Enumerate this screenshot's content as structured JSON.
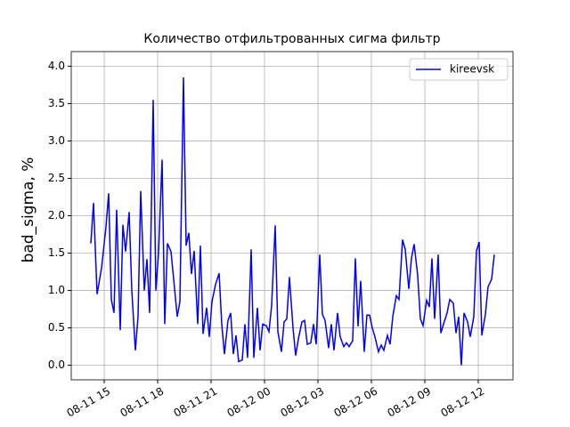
{
  "chart_data": {
    "type": "line",
    "title": "Количество отфильтрованных сигма фильтр",
    "y_label": "bad_sigma, %",
    "x": [
      "08-11 14:15",
      "08-11 14:24",
      "08-11 14:36",
      "08-11 14:51",
      "08-11 15:06",
      "08-11 15:15",
      "08-11 15:24",
      "08-11 15:33",
      "08-11 15:42",
      "08-11 15:54",
      "08-11 16:03",
      "08-11 16:12",
      "08-11 16:24",
      "08-11 16:33",
      "08-11 16:45",
      "08-11 16:54",
      "08-11 17:03",
      "08-11 17:15",
      "08-11 17:24",
      "08-11 17:33",
      "08-11 17:45",
      "08-11 17:54",
      "08-11 18:03",
      "08-11 18:15",
      "08-11 18:24",
      "08-11 18:33",
      "08-11 18:45",
      "08-11 18:54",
      "08-11 19:06",
      "08-11 19:15",
      "08-11 19:27",
      "08-11 19:36",
      "08-11 19:45",
      "08-11 19:54",
      "08-11 20:03",
      "08-11 20:15",
      "08-11 20:24",
      "08-11 20:33",
      "08-11 20:45",
      "08-11 20:54",
      "08-11 21:03",
      "08-11 21:15",
      "08-11 21:27",
      "08-11 21:36",
      "08-11 21:45",
      "08-11 21:57",
      "08-11 22:06",
      "08-11 22:15",
      "08-11 22:24",
      "08-11 22:33",
      "08-11 22:45",
      "08-11 22:54",
      "08-11 23:03",
      "08-11 23:15",
      "08-11 23:24",
      "08-11 23:36",
      "08-11 23:45",
      "08-11 23:54",
      "08-12 00:06",
      "08-12 00:15",
      "08-12 00:24",
      "08-12 00:36",
      "08-12 00:45",
      "08-12 00:57",
      "08-12 01:06",
      "08-12 01:15",
      "08-12 01:24",
      "08-12 01:36",
      "08-12 01:45",
      "08-12 01:54",
      "08-12 02:06",
      "08-12 02:15",
      "08-12 02:24",
      "08-12 02:36",
      "08-12 02:45",
      "08-12 02:54",
      "08-12 03:06",
      "08-12 03:15",
      "08-12 03:24",
      "08-12 03:36",
      "08-12 03:45",
      "08-12 03:54",
      "08-12 04:06",
      "08-12 04:15",
      "08-12 04:27",
      "08-12 04:36",
      "08-12 04:45",
      "08-12 04:57",
      "08-12 05:06",
      "08-12 05:15",
      "08-12 05:24",
      "08-12 05:36",
      "08-12 05:45",
      "08-12 05:54",
      "08-12 06:03",
      "08-12 06:12",
      "08-12 06:24",
      "08-12 06:33",
      "08-12 06:42",
      "08-12 06:54",
      "08-12 07:03",
      "08-12 07:12",
      "08-12 07:24",
      "08-12 07:33",
      "08-12 07:45",
      "08-12 07:54",
      "08-12 08:06",
      "08-12 08:15",
      "08-12 08:24",
      "08-12 08:36",
      "08-12 08:45",
      "08-12 08:54",
      "08-12 09:06",
      "08-12 09:15",
      "08-12 09:24",
      "08-12 09:33",
      "08-12 09:45",
      "08-12 09:54",
      "08-12 10:03",
      "08-12 10:15",
      "08-12 10:24",
      "08-12 10:36",
      "08-12 10:45",
      "08-12 10:54",
      "08-12 11:03",
      "08-12 11:12",
      "08-12 11:24",
      "08-12 11:33",
      "08-12 11:45",
      "08-12 11:54",
      "08-12 12:03",
      "08-12 12:12",
      "08-12 12:24",
      "08-12 12:33",
      "08-12 12:45",
      "08-12 12:54"
    ],
    "series": [
      {
        "name": "kireevsk",
        "color": "#0000ff",
        "values": [
          1.63,
          2.17,
          0.95,
          1.3,
          1.85,
          2.3,
          0.88,
          0.7,
          2.08,
          0.47,
          1.88,
          1.52,
          2.05,
          1.0,
          0.2,
          0.65,
          2.33,
          1.0,
          1.42,
          0.7,
          3.55,
          1.0,
          1.5,
          2.75,
          0.55,
          1.63,
          1.52,
          1.15,
          0.65,
          0.85,
          3.85,
          1.6,
          1.77,
          1.22,
          1.53,
          0.55,
          1.6,
          0.42,
          0.77,
          0.38,
          0.85,
          1.08,
          1.23,
          0.55,
          0.15,
          0.6,
          0.7,
          0.15,
          0.4,
          0.05,
          0.07,
          0.55,
          0.1,
          1.55,
          0.1,
          0.77,
          0.2,
          0.55,
          0.53,
          0.45,
          0.8,
          1.87,
          0.45,
          0.18,
          0.58,
          0.62,
          1.18,
          0.5,
          0.13,
          0.35,
          0.58,
          0.6,
          0.28,
          0.3,
          0.55,
          0.28,
          1.48,
          0.68,
          0.6,
          0.23,
          0.55,
          0.2,
          0.7,
          0.38,
          0.25,
          0.3,
          0.25,
          0.33,
          1.43,
          0.52,
          1.13,
          0.18,
          0.67,
          0.67,
          0.5,
          0.38,
          0.18,
          0.27,
          0.2,
          0.4,
          0.28,
          0.65,
          0.93,
          0.88,
          1.68,
          1.55,
          1.02,
          1.43,
          1.62,
          1.2,
          0.62,
          0.53,
          0.87,
          0.78,
          1.43,
          0.62,
          1.48,
          0.43,
          0.55,
          0.7,
          0.88,
          0.83,
          0.43,
          0.65,
          0.0,
          0.7,
          0.58,
          0.38,
          0.65,
          1.53,
          1.65,
          0.4,
          0.68,
          1.05,
          1.15,
          1.48
        ]
      }
    ],
    "xlim": [
      "08-11 13:09",
      "08-12 13:57"
    ],
    "xticks": [
      "08-11 15",
      "08-11 18",
      "08-11 21",
      "08-12 00",
      "08-12 03",
      "08-12 06",
      "08-12 09",
      "08-12 12"
    ],
    "ylim": [
      -0.195,
      4.195
    ],
    "yticks": [
      {
        "value": 0,
        "label": "0.0"
      },
      {
        "value": 0.5,
        "label": "0.5"
      },
      {
        "value": 1,
        "label": "1.0"
      },
      {
        "value": 1.5,
        "label": "1.5"
      },
      {
        "value": 2,
        "label": "2.0"
      },
      {
        "value": 2.5,
        "label": "2.5"
      },
      {
        "value": 3,
        "label": "3.0"
      },
      {
        "value": 3.5,
        "label": "3.5"
      },
      {
        "value": 4,
        "label": "4.0"
      }
    ],
    "grid": true,
    "legend": "upper right"
  }
}
